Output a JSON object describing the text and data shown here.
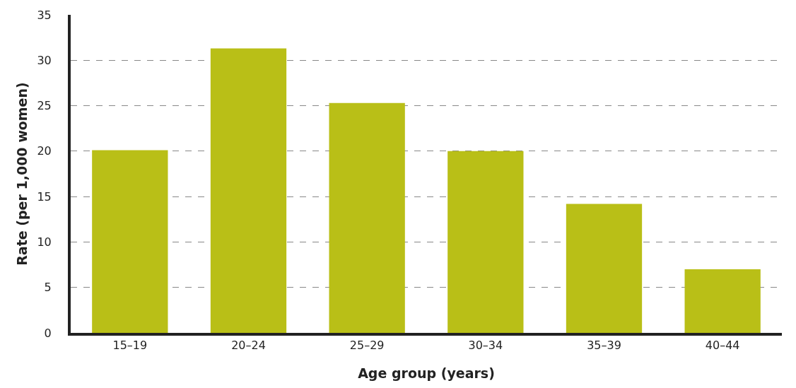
{
  "chart_data": {
    "type": "bar",
    "xlabel": "Age group (years)",
    "ylabel": "Rate (per 1,000 women)",
    "categories": [
      "15–19",
      "20–24",
      "25–29",
      "30–34",
      "35–39",
      "40–44"
    ],
    "values": [
      20.1,
      31.3,
      25.3,
      20.0,
      14.2,
      7.0
    ],
    "color": "#b9bf17",
    "ylim": [
      0,
      35
    ],
    "yticks": [
      0,
      5,
      10,
      15,
      20,
      25,
      30,
      35
    ],
    "grid": "y",
    "legend": false
  }
}
